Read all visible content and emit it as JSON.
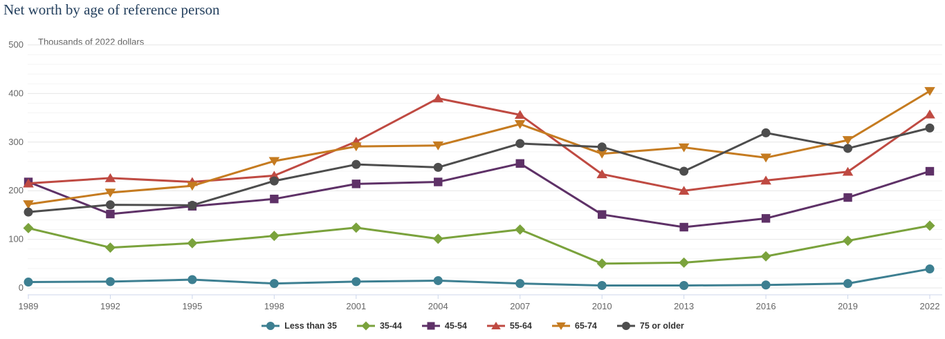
{
  "chart_data": {
    "type": "line",
    "title": "Net worth by age of reference person",
    "subtitle": "Thousands of 2022 dollars",
    "x": [
      1989,
      1992,
      1995,
      1998,
      2001,
      2004,
      2007,
      2010,
      2013,
      2016,
      2019,
      2022
    ],
    "series": [
      {
        "name": "Less than 35",
        "color": "#3D7F91",
        "marker": "circle",
        "values": [
          12,
          13,
          17,
          9,
          13,
          15,
          9,
          5,
          5,
          6,
          9,
          39
        ]
      },
      {
        "name": "35-44",
        "color": "#7AA23C",
        "marker": "diamond",
        "values": [
          123,
          83,
          92,
          107,
          124,
          101,
          120,
          50,
          52,
          65,
          97,
          128
        ]
      },
      {
        "name": "45-54",
        "color": "#5E3167",
        "marker": "square",
        "values": [
          218,
          152,
          168,
          183,
          214,
          218,
          256,
          151,
          125,
          143,
          186,
          240
        ]
      },
      {
        "name": "55-64",
        "color": "#BF4A42",
        "marker": "triangle",
        "values": [
          215,
          226,
          218,
          231,
          301,
          390,
          356,
          234,
          200,
          221,
          239,
          357
        ]
      },
      {
        "name": "65-74",
        "color": "#C57B20",
        "marker": "triangle-down",
        "values": [
          172,
          196,
          210,
          261,
          291,
          293,
          337,
          276,
          289,
          268,
          304,
          405
        ]
      },
      {
        "name": "75 or older",
        "color": "#4D4D4D",
        "marker": "circle",
        "values": [
          156,
          171,
          170,
          220,
          254,
          248,
          297,
          290,
          240,
          319,
          287,
          329
        ]
      }
    ],
    "ylim": [
      0,
      500
    ],
    "y_tick_interval": 100,
    "y_minor_interval": 20,
    "y_tick_labels": [
      "0",
      "100",
      "200",
      "300",
      "400",
      "500"
    ],
    "x_tick_labels": [
      "1989",
      "1992",
      "1995",
      "1998",
      "2001",
      "2004",
      "2007",
      "2010",
      "2013",
      "2016",
      "2019",
      "2022"
    ],
    "legend_position": "bottom-center",
    "grid": true
  },
  "colors": {
    "title_text": "#24405E",
    "subtitle_text": "#666666",
    "axis_text": "#666666",
    "axis_line": "#CCD6EB",
    "grid_major": "#E6E6E6",
    "grid_minor": "#F4F4F4",
    "legend_text": "#333333",
    "background": "#FFFFFF"
  }
}
